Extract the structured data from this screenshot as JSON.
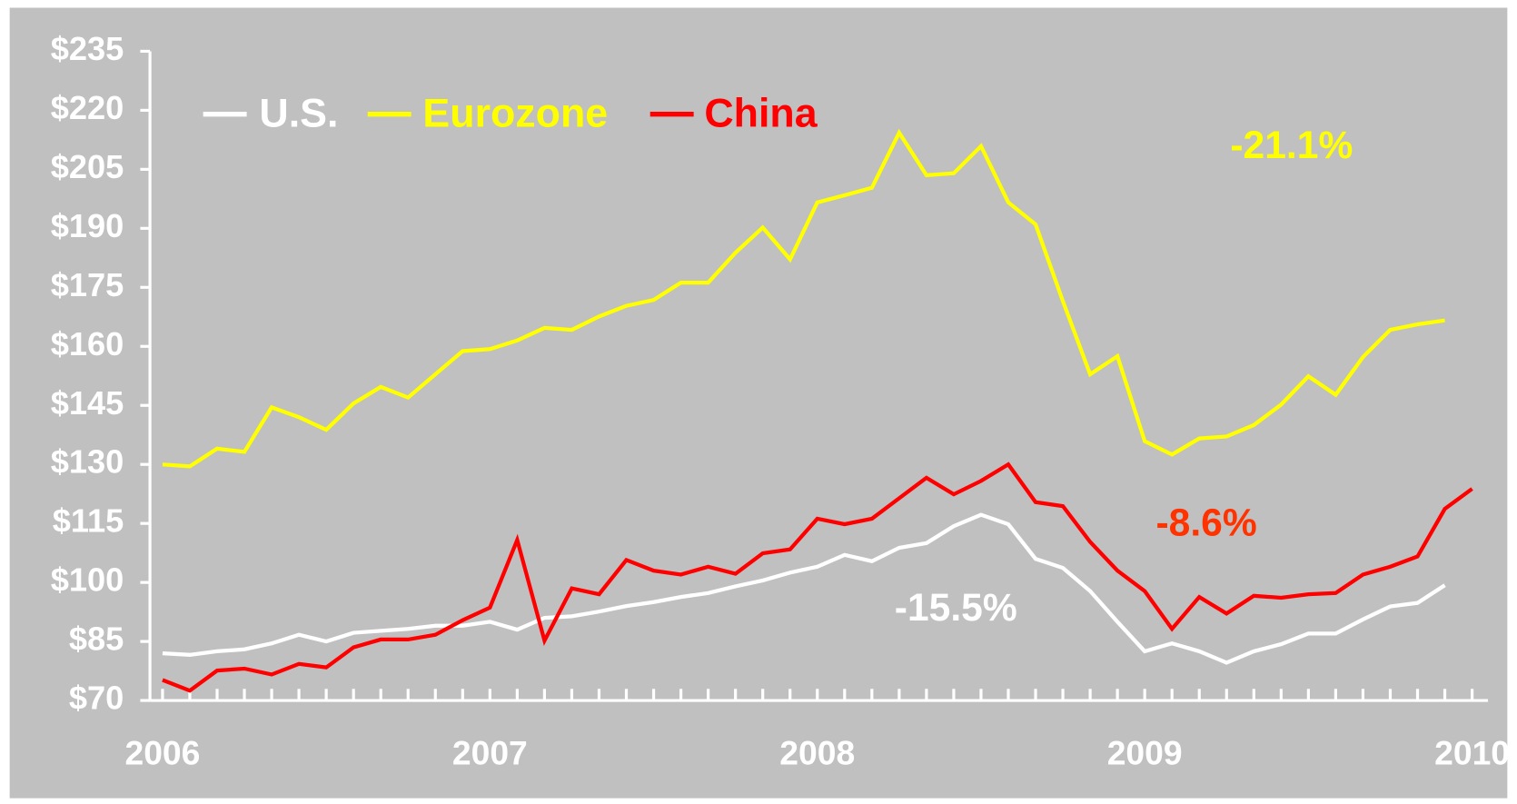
{
  "chart_data": {
    "type": "line",
    "categories": [
      "2006",
      null,
      null,
      null,
      null,
      null,
      null,
      null,
      null,
      null,
      null,
      null,
      "2007",
      null,
      null,
      null,
      null,
      null,
      null,
      null,
      null,
      null,
      null,
      null,
      "2008",
      null,
      null,
      null,
      null,
      null,
      null,
      null,
      null,
      null,
      null,
      null,
      "2009",
      null,
      null,
      null,
      null,
      null,
      null,
      null,
      null,
      null,
      null,
      null,
      "2010"
    ],
    "ylim": [
      70,
      235
    ],
    "yticks": [
      {
        "value": 70,
        "label": "$70"
      },
      {
        "value": 85,
        "label": "$85"
      },
      {
        "value": 100,
        "label": "$100"
      },
      {
        "value": 115,
        "label": "$115"
      },
      {
        "value": 130,
        "label": "$130"
      },
      {
        "value": 145,
        "label": "$145"
      },
      {
        "value": 160,
        "label": "$160"
      },
      {
        "value": 175,
        "label": "$175"
      },
      {
        "value": 190,
        "label": "$190"
      },
      {
        "value": 205,
        "label": "$205"
      },
      {
        "value": 220,
        "label": "$220"
      },
      {
        "value": 235,
        "label": "$235"
      }
    ],
    "legend": "top-left",
    "series": [
      {
        "name": "U.S.",
        "color": "#ffffff",
        "values": [
          82,
          81.6,
          82.5,
          83,
          84.5,
          86.7,
          85,
          87.2,
          87.7,
          88.2,
          89,
          89,
          90,
          88,
          91,
          91.4,
          92.6,
          94,
          95,
          96.3,
          97.3,
          99,
          100.5,
          102.5,
          104,
          107,
          105.4,
          108.8,
          110,
          114.3,
          117.2,
          114.8,
          106,
          103.7,
          97.8,
          90,
          82.5,
          84.5,
          82.5,
          79.6,
          82.5,
          84.3,
          87,
          87,
          90.6,
          93.9,
          94.8,
          99.3,
          null
        ]
      },
      {
        "name": "Eurozone",
        "color": "#ffff00",
        "values": [
          130,
          129.5,
          134,
          133.2,
          144.5,
          142,
          138.8,
          145.5,
          149.7,
          147,
          152.9,
          158.8,
          159.3,
          161.5,
          164.7,
          164.2,
          167.6,
          170.3,
          171.8,
          176.2,
          176.2,
          183.8,
          190.2,
          182.1,
          196.6,
          198.4,
          200.3,
          214.3,
          203.5,
          204,
          210.9,
          196.6,
          191,
          171.5,
          152.9,
          157.5,
          135.9,
          132.5,
          136.6,
          137.1,
          140,
          145.2,
          152.4,
          147.7,
          157.3,
          164.2,
          165.6,
          166.6,
          null
        ]
      },
      {
        "name": "China",
        "color": "#ff0000",
        "values": [
          75.2,
          72.5,
          77.6,
          78.1,
          76.6,
          79.3,
          78.4,
          83.5,
          85.5,
          85.5,
          86.7,
          90.4,
          93.6,
          110.8,
          85.2,
          98.5,
          97,
          105.7,
          103,
          102,
          104,
          102.2,
          107.4,
          108.4,
          116.2,
          114.8,
          116.2,
          121.4,
          126.6,
          122.4,
          125.8,
          130,
          120.4,
          119.4,
          110.3,
          103,
          97.8,
          88.2,
          96.3,
          92.1,
          96.6,
          96.1,
          97,
          97.3,
          102,
          104,
          106.6,
          118.7,
          123.8
        ]
      }
    ],
    "annotations": [
      {
        "text": "-21.1%",
        "color": "#ffff00"
      },
      {
        "text": "-8.6%",
        "color": "#ff3300"
      },
      {
        "text": "-15.5%",
        "color": "#ffffff"
      }
    ]
  }
}
